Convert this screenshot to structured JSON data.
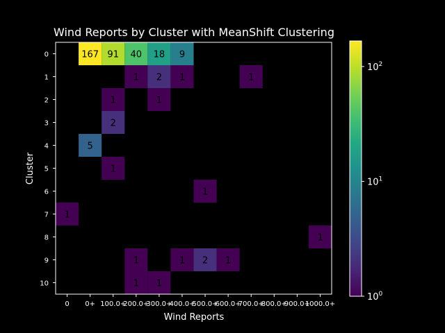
{
  "chart_data": {
    "type": "heatmap",
    "title": "Wind Reports by Cluster with MeanShift Clustering",
    "xlabel": "Wind Reports",
    "ylabel": "Cluster",
    "x_categories": [
      "0",
      "0+",
      "100.0+",
      "200.0+",
      "300.0+",
      "400.0+",
      "500.0+",
      "600.0+",
      "700.0+",
      "800.0+",
      "900.0+",
      "1000.0+"
    ],
    "y_categories": [
      "0",
      "1",
      "2",
      "3",
      "4",
      "5",
      "6",
      "7",
      "8",
      "9",
      "10"
    ],
    "values": [
      [
        null,
        167,
        91,
        40,
        18,
        9,
        null,
        null,
        null,
        null,
        null,
        null
      ],
      [
        null,
        null,
        null,
        1,
        2,
        1,
        null,
        null,
        1,
        null,
        null,
        null
      ],
      [
        null,
        null,
        1,
        null,
        1,
        null,
        null,
        null,
        null,
        null,
        null,
        null
      ],
      [
        null,
        null,
        2,
        null,
        null,
        null,
        null,
        null,
        null,
        null,
        null,
        null
      ],
      [
        null,
        5,
        null,
        null,
        null,
        null,
        null,
        null,
        null,
        null,
        null,
        null
      ],
      [
        null,
        null,
        1,
        null,
        null,
        null,
        null,
        null,
        null,
        null,
        null,
        null
      ],
      [
        null,
        null,
        null,
        null,
        null,
        null,
        1,
        null,
        null,
        null,
        null,
        null
      ],
      [
        1,
        null,
        null,
        null,
        null,
        null,
        null,
        null,
        null,
        null,
        null,
        null
      ],
      [
        null,
        null,
        null,
        null,
        null,
        null,
        null,
        null,
        null,
        null,
        null,
        1
      ],
      [
        null,
        null,
        null,
        1,
        null,
        1,
        2,
        1,
        null,
        null,
        null,
        null
      ],
      [
        null,
        null,
        null,
        1,
        1,
        null,
        null,
        null,
        null,
        null,
        null,
        null
      ]
    ],
    "colorbar": {
      "scale": "log",
      "colormap": "viridis",
      "range": [
        1,
        167
      ],
      "ticks": [
        {
          "value": 1,
          "base": "10",
          "exp": "0"
        },
        {
          "value": 10,
          "base": "10",
          "exp": "1"
        },
        {
          "value": 100,
          "base": "10",
          "exp": "2"
        }
      ]
    },
    "colors": {
      "background": "#000000",
      "foreground": "#ffffff",
      "annotation": "#000000"
    }
  }
}
